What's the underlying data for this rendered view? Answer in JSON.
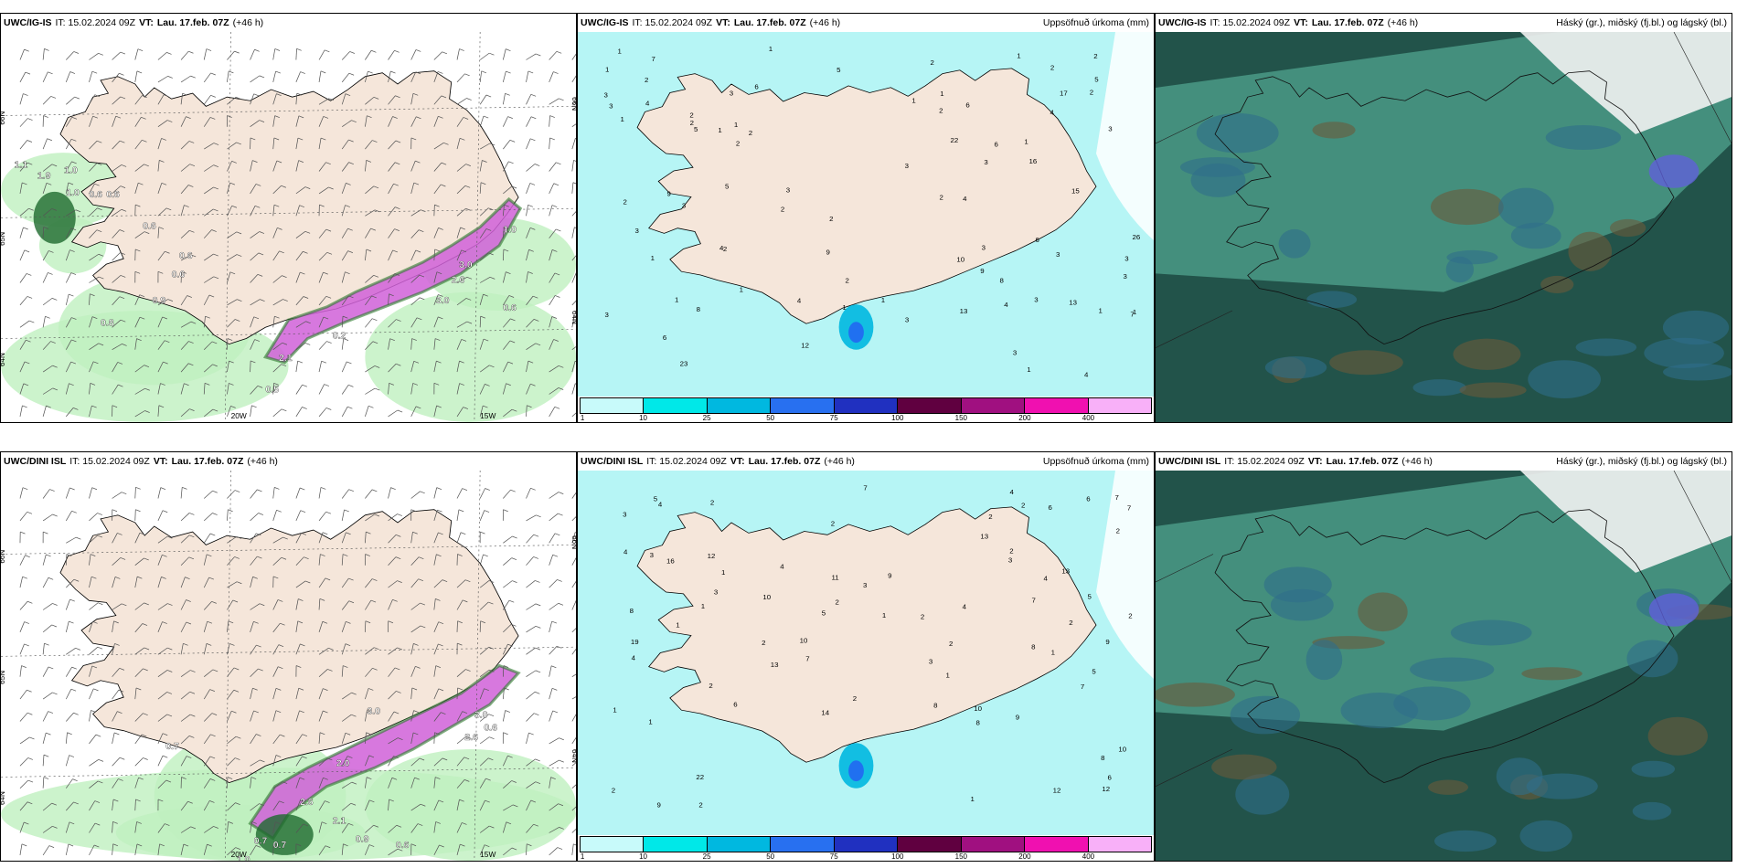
{
  "colors": {
    "land": "#f5e6da",
    "precip_light": "#b6f5f5",
    "cloud_bg": "#22534a",
    "cloud_mid": "#4a9a86",
    "cloud_low": "#2e6e8a",
    "snow_green": "#3aa83a",
    "snow_pink": "#d060d8"
  },
  "panels": [
    {
      "model": "UWC/IG-IS",
      "it": "IT: 15.02.2024 09Z",
      "vt_label": "VT:",
      "vt": "Lau. 17.feb. 07Z",
      "offset": "(+46 h)",
      "title_right": "",
      "labels": [
        {
          "t": "1.1"
        },
        {
          "t": "1.9"
        },
        {
          "t": "1.0"
        },
        {
          "t": "1.0"
        },
        {
          "t": "0.6"
        },
        {
          "t": "0.6"
        },
        {
          "t": "0.6"
        },
        {
          "t": "0.6"
        },
        {
          "t": "0.6"
        },
        {
          "t": "0.9"
        },
        {
          "t": "0.8"
        },
        {
          "t": "0.2"
        },
        {
          "t": "2.1"
        },
        {
          "t": "3.0"
        },
        {
          "t": "2.6"
        },
        {
          "t": "3.0"
        },
        {
          "t": "0.6"
        },
        {
          "t": "1.0"
        },
        {
          "t": "0.5"
        }
      ],
      "axis": {
        "lat": [
          "66N",
          "65N",
          "64N"
        ],
        "lon": [
          "20W",
          "15W"
        ],
        "lat_right": [
          "66N",
          "64N"
        ],
        "lon_left": "25W"
      }
    },
    {
      "model": "UWC/IG-IS",
      "it": "IT: 15.02.2024 09Z",
      "vt_label": "VT:",
      "vt": "Lau. 17.feb. 07Z",
      "offset": "(+46 h)",
      "title_right": "Uppsöfnuð úrkoma (mm)",
      "numbers": [
        "2",
        "2",
        "2",
        "3",
        "1",
        "1",
        "1",
        "1",
        "1",
        "2",
        "1",
        "3",
        "3",
        "3",
        "3",
        "6",
        "1",
        "3",
        "2",
        "1",
        "4",
        "1",
        "3",
        "1",
        "5",
        "3",
        "1",
        "4",
        "3",
        "2",
        "1",
        "1",
        "2",
        "1",
        "16",
        "2",
        "2",
        "5",
        "4",
        "6",
        "7",
        "1",
        "13",
        "3",
        "2",
        "13",
        "1",
        "6",
        "2",
        "4",
        "2",
        "3",
        "2",
        "4",
        "2",
        "3",
        "5",
        "7",
        "10",
        "4",
        "8",
        "17",
        "1",
        "5",
        "23",
        "6",
        "22",
        "15",
        "26",
        "9",
        "12",
        "8",
        "9",
        "3",
        "3",
        "9",
        "3",
        "4",
        "3",
        "6",
        "2",
        "2",
        "3",
        "1"
      ],
      "colorbar": [
        "1",
        "10",
        "25",
        "50",
        "75",
        "100",
        "150",
        "200",
        "400"
      ]
    },
    {
      "model": "UWC/IG-IS",
      "it": "IT: 15.02.2024 09Z",
      "vt_label": "VT:",
      "vt": "Lau. 17.feb. 07Z",
      "offset": "(+46 h)",
      "title_right": "Háský (gr.), miðský (fj.bl.) og lágský (bl.)"
    },
    {
      "model": "UWC/DINI ISL",
      "it": "IT: 15.02.2024 09Z",
      "vt_label": "VT:",
      "vt": "Lau. 17.feb. 07Z",
      "offset": "(+46 h)",
      "title_right": "",
      "labels": [
        {
          "t": "0.7"
        },
        {
          "t": "2.6"
        },
        {
          "t": "2.1"
        },
        {
          "t": "3.0"
        },
        {
          "t": "2.0"
        },
        {
          "t": "2.6"
        },
        {
          "t": "3.0"
        },
        {
          "t": "0.6"
        },
        {
          "t": "0.7"
        },
        {
          "t": "1.0"
        },
        {
          "t": "0.7"
        },
        {
          "t": "0.9"
        },
        {
          "t": "0.6"
        },
        {
          "t": "0.5"
        },
        {
          "t": "0.7"
        }
      ],
      "axis": {
        "lat": [
          "66N",
          "65N",
          "64N"
        ],
        "lon": [
          "20W",
          "15W"
        ],
        "lat_right": [
          "66N",
          "64N"
        ],
        "lon_left": "25W"
      }
    },
    {
      "model": "UWC/DINI ISL",
      "it": "IT: 15.02.2024 09Z",
      "vt_label": "VT:",
      "vt": "Lau. 17.feb. 07Z",
      "offset": "(+46 h)",
      "title_right": "Uppsöfnuð úrkoma (mm)",
      "numbers": [
        "2",
        "2",
        "2",
        "2",
        "3",
        "2",
        "7",
        "1",
        "1",
        "1",
        "5",
        "7",
        "8",
        "4",
        "4",
        "14",
        "22",
        "6",
        "3",
        "2",
        "3",
        "11",
        "1",
        "7",
        "3",
        "2",
        "9",
        "5",
        "3",
        "7",
        "2",
        "1",
        "1",
        "1",
        "9",
        "10",
        "2",
        "1",
        "8",
        "8",
        "4",
        "3",
        "2",
        "6",
        "6",
        "8",
        "2",
        "12",
        "19",
        "16",
        "13",
        "10",
        "8",
        "2",
        "2",
        "4",
        "10",
        "5",
        "7",
        "12",
        "13",
        "10",
        "9",
        "13",
        "2",
        "4",
        "4",
        "9",
        "7",
        "6",
        "2",
        "1",
        "4",
        "5",
        "2",
        "12"
      ],
      "colorbar": [
        "1",
        "10",
        "25",
        "50",
        "75",
        "100",
        "150",
        "200",
        "400"
      ]
    },
    {
      "model": "UWC/DINI ISL",
      "it": "IT: 15.02.2024 09Z",
      "vt_label": "VT:",
      "vt": "Lau. 17.feb. 07Z",
      "offset": "(+46 h)",
      "title_right": "Háský (gr.), miðský (fj.bl.) og lágský (bl.)"
    }
  ],
  "colorbar_colors": [
    "#c8fafa",
    "#00e8e8",
    "#00b8e0",
    "#2870f0",
    "#2030c0",
    "#600040",
    "#a01080",
    "#f010b0",
    "#f8b0f8"
  ]
}
